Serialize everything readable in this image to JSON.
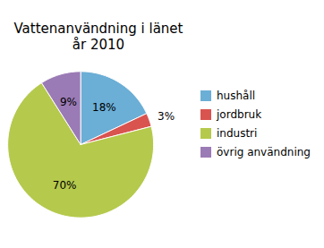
{
  "chart_data": {
    "type": "pie",
    "title": "Vattenanvändning i länet\når 2010",
    "categories": [
      "hushåll",
      "jordbruk",
      "industri",
      "övrig användning"
    ],
    "values": [
      18,
      3,
      70,
      9
    ],
    "value_labels": [
      "18%",
      "3%",
      "70%",
      "9%"
    ],
    "colors": [
      "#6baed6",
      "#d9534f",
      "#b5c94c",
      "#9b7bb5"
    ],
    "data_labels": true,
    "legend": "right"
  }
}
